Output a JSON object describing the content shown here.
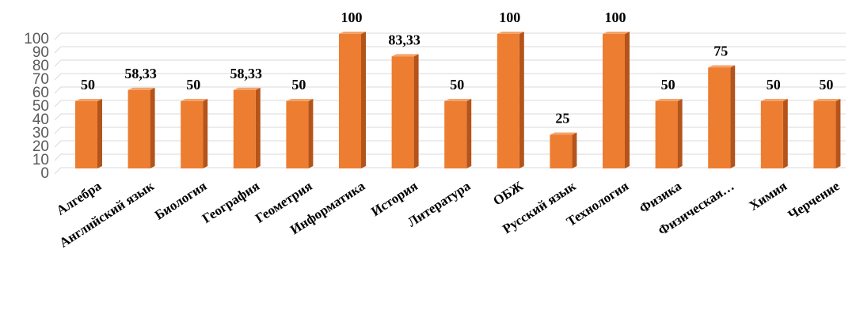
{
  "chart_data": {
    "type": "bar",
    "title": "",
    "xlabel": "",
    "ylabel": "",
    "categories": [
      "Алгебра",
      "Английский язык",
      "Биология",
      "География",
      "Геометрия",
      "Информатика",
      "История",
      "Литература",
      "ОБЖ",
      "Русский язык",
      "Технология",
      "Физика",
      "Физическая…",
      "Химия",
      "Черчение"
    ],
    "values": [
      50,
      58.33,
      50,
      58.33,
      50,
      100,
      83.33,
      50,
      100,
      25,
      100,
      50,
      75,
      50,
      50
    ],
    "data_labels": [
      "50",
      "58,33",
      "50",
      "58,33",
      "50",
      "100",
      "83,33",
      "50",
      "100",
      "25",
      "100",
      "50",
      "75",
      "50",
      "50"
    ],
    "ylim": [
      0,
      100
    ],
    "yticks": [
      0,
      10,
      20,
      30,
      40,
      50,
      60,
      70,
      80,
      90,
      100
    ],
    "grid": true,
    "legend": "none",
    "bar_style": "3d",
    "colors": {
      "bar_front": "#ed7d31",
      "bar_side": "#b5541a",
      "bar_top": "#f4a46c",
      "grid": "#d9d9d9",
      "tick_text": "#595959"
    }
  }
}
